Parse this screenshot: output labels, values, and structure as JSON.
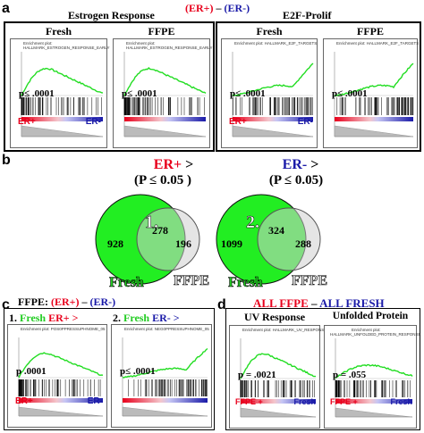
{
  "panel_a": {
    "label": "a",
    "group1_title": "Estrogen Response",
    "contrast_plus": "(ER+)",
    "contrast_dash": "–",
    "contrast_minus": "(ER-)",
    "group2_title": "E2F-Prolif",
    "plots": [
      {
        "heading": "Fresh",
        "plot_title": "Enrichment plot:",
        "gene_set": "HALLMARK_ESTROGEN_RESPONSE_EARLY",
        "pval": "p≤ .0001",
        "left": "ER+",
        "right": "ER-",
        "curve": "early"
      },
      {
        "heading": "FFPE",
        "plot_title": "Enrichment plot:",
        "gene_set": "HALLMARK_ESTROGEN_RESPONSE_EARLY",
        "pval": "p≤ .0001",
        "left": "",
        "right": "",
        "curve": "early"
      },
      {
        "heading": "Fresh",
        "plot_title": "Enrichment plot: HALLMARK_E2F_TARGETS",
        "gene_set": "",
        "pval": "p≤ .0001",
        "left": "ER+",
        "right": "ER-",
        "curve": "late"
      },
      {
        "heading": "FFPE",
        "plot_title": "Enrichment plot: HALLMARK_E2F_TARGETS",
        "gene_set": "",
        "pval": "p≤ .0001",
        "left": "",
        "right": "",
        "curve": "late"
      }
    ]
  },
  "panel_b": {
    "label": "b",
    "venns": [
      {
        "head1": "ER+",
        "head1_suffix": " >",
        "head2": "(P ≤ 0.05 )",
        "number": "1.",
        "only_fresh": "928",
        "overlap": "278",
        "only_ffpe": "196",
        "left_label": "Fresh",
        "right_label": "FFPE"
      },
      {
        "head1": "ER-",
        "head1_suffix": " >",
        "head2": "(P ≤ 0.05)",
        "number": "2.",
        "only_fresh": "1099",
        "overlap": "324",
        "only_ffpe": "288",
        "left_label": "Fresh",
        "right_label": "FFPE"
      }
    ],
    "colors": {
      "fresh": "#22ee22",
      "ffpe": "#cfcfcf",
      "erplus": "#e8001c",
      "erminus": "#1a1aa8"
    }
  },
  "panel_c": {
    "label": "c",
    "title_prefix": "FFPE:",
    "contrast_plus": "(ER+)",
    "contrast_dash": "–",
    "contrast_minus": "(ER-)",
    "plots": [
      {
        "num": "1.",
        "fresh": "Fresh",
        "group": "ER+",
        "gt": ">",
        "plot_title": "Enrichment plot: POS0PPRESSUPHNOME_05",
        "pval": "p .0001",
        "left": "ER+",
        "right": "ER-",
        "curve": "early"
      },
      {
        "num": "2.",
        "fresh": "Fresh",
        "group": "ER-",
        "gt": ">",
        "plot_title": "Enrichment plot: NEG0PPRESSUPHNOME_05",
        "pval": "p≤ .0001",
        "left": "",
        "right": "",
        "curve": "late"
      }
    ]
  },
  "panel_d": {
    "label": "d",
    "title_ffpe": "ALL FFPE",
    "title_dash": " – ",
    "title_fresh": "ALL FRESH",
    "plots": [
      {
        "heading": "UV Response",
        "plot_title": "Enrichment plot: HALLMARK_UV_RESPONSE_DN",
        "gene_set": "",
        "pval": "p = .0021",
        "left": "FFPE +",
        "right": "Fresh",
        "curve": "early"
      },
      {
        "heading": "Unfolded Protein",
        "plot_title": "Enrichment plot:",
        "gene_set": "HALLMARK_UNFOLDED_PROTEIN_RESPONSE",
        "pval": "p = .055",
        "left": "FFPE +",
        "right": "Fresh",
        "curve": "early2"
      }
    ]
  },
  "colors": {
    "curve": "#22dd22",
    "red": "#e8001c",
    "blue": "#1a1aa8"
  }
}
